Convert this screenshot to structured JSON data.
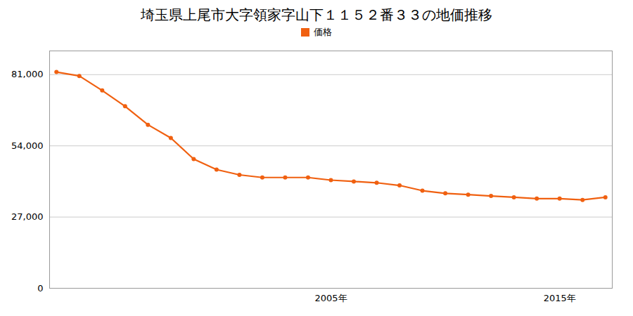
{
  "chart_data": {
    "type": "line",
    "title": "埼玉県上尾市大字領家字山下１１５２番３３の地価推移",
    "x": [
      1993,
      1994,
      1995,
      1996,
      1997,
      1998,
      1999,
      2000,
      2001,
      2002,
      2003,
      2004,
      2005,
      2006,
      2007,
      2008,
      2009,
      2010,
      2011,
      2012,
      2013,
      2014,
      2015,
      2016,
      2017
    ],
    "series": [
      {
        "name": "価格",
        "color": "#f06010",
        "marker": "circle",
        "values": [
          82000,
          80500,
          75000,
          69000,
          62000,
          57000,
          49000,
          45000,
          43000,
          42000,
          42000,
          42000,
          41000,
          40500,
          40000,
          39000,
          37000,
          36000,
          35500,
          35000,
          34500,
          34000,
          34000,
          33500,
          34500
        ]
      }
    ],
    "xlim": [
      1992.7,
      2017.3
    ],
    "xticks": [
      {
        "value": 2005,
        "label": "2005年"
      },
      {
        "value": 2015,
        "label": "2015年"
      }
    ],
    "ylim": [
      0,
      90000
    ],
    "yticks": [
      0,
      {
        "value": 27000,
        "label": "27,000"
      },
      {
        "value": 54000,
        "label": "54,000"
      },
      {
        "value": 81000,
        "label": "81,000"
      }
    ],
    "grid": "y",
    "legend": "top"
  }
}
